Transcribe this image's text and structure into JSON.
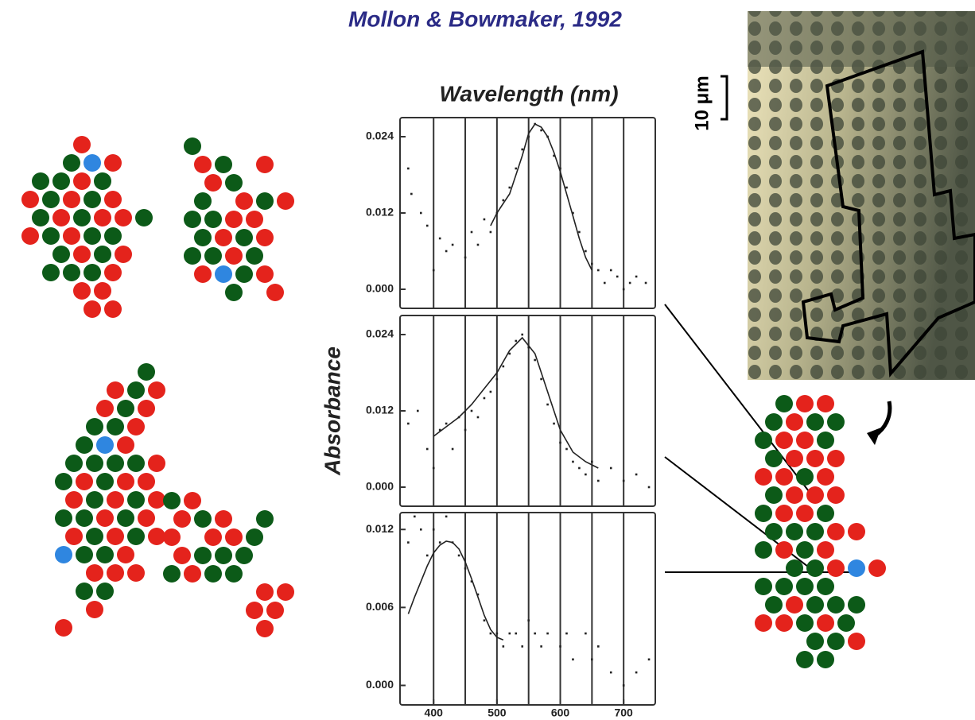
{
  "header": {
    "citation": "Mollon & Bowmaker, 1992"
  },
  "scale_bar": {
    "label": "10 μm"
  },
  "chart_data": [
    {
      "type": "scatter",
      "xlabel": "Wavelength (nm)",
      "xlim": [
        347,
        750
      ],
      "ylim": [
        -0.003,
        0.027
      ],
      "yticks": [
        {
          "value": 0,
          "label": "0.000"
        },
        0.012,
        0.024
      ],
      "xgrid": [
        400,
        450,
        500,
        550,
        600,
        650,
        700
      ],
      "color": "#222222",
      "points": {
        "x": [
          360,
          365,
          380,
          390,
          400,
          410,
          420,
          430,
          450,
          460,
          470,
          480,
          490,
          500,
          510,
          520,
          530,
          540,
          550,
          560,
          570,
          580,
          590,
          600,
          610,
          620,
          630,
          640,
          650,
          660,
          670,
          680,
          690,
          700,
          710,
          720,
          735
        ],
        "values": [
          0.019,
          0.015,
          0.012,
          0.01,
          0.003,
          0.008,
          0.006,
          0.007,
          0.005,
          0.009,
          0.007,
          0.011,
          0.009,
          0.012,
          0.014,
          0.016,
          0.019,
          0.022,
          0.024,
          0.026,
          0.025,
          0.024,
          0.021,
          0.019,
          0.016,
          0.012,
          0.009,
          0.006,
          0.004,
          0.003,
          0.001,
          0.003,
          0.002,
          0.0,
          0.001,
          0.002,
          0.001
        ]
      },
      "fit": {
        "x": [
          490,
          500,
          510,
          520,
          530,
          540,
          550,
          560,
          570,
          580,
          590,
          600,
          610,
          620,
          630,
          640,
          650
        ],
        "values": [
          0.01,
          0.012,
          0.0135,
          0.015,
          0.018,
          0.021,
          0.0245,
          0.026,
          0.0255,
          0.024,
          0.0215,
          0.0185,
          0.015,
          0.0115,
          0.008,
          0.005,
          0.003
        ]
      }
    },
    {
      "type": "scatter",
      "ylabel": "Absorbance",
      "xlim": [
        347,
        750
      ],
      "ylim": [
        -0.003,
        0.027
      ],
      "yticks": [
        {
          "value": 0,
          "label": "0.000"
        },
        0.012,
        0.024
      ],
      "xgrid": [
        400,
        450,
        500,
        550,
        600,
        650,
        700
      ],
      "color": "#222222",
      "points": {
        "x": [
          360,
          375,
          390,
          400,
          410,
          420,
          430,
          440,
          450,
          460,
          470,
          480,
          490,
          500,
          510,
          520,
          530,
          540,
          550,
          560,
          570,
          580,
          590,
          600,
          610,
          620,
          630,
          640,
          650,
          660,
          680,
          700,
          720,
          740
        ],
        "values": [
          0.01,
          0.012,
          0.006,
          0.003,
          0.009,
          0.01,
          0.006,
          0.011,
          0.009,
          0.012,
          0.011,
          0.014,
          0.015,
          0.017,
          0.019,
          0.021,
          0.023,
          0.024,
          0.022,
          0.02,
          0.017,
          0.013,
          0.01,
          0.007,
          0.006,
          0.004,
          0.003,
          0.002,
          0.004,
          0.001,
          0.003,
          0.001,
          0.002,
          0.0
        ]
      },
      "fit": {
        "x": [
          400,
          420,
          440,
          460,
          480,
          500,
          520,
          540,
          560,
          580,
          600,
          620,
          640,
          660
        ],
        "values": [
          0.008,
          0.0095,
          0.011,
          0.013,
          0.0155,
          0.018,
          0.0215,
          0.0235,
          0.021,
          0.015,
          0.009,
          0.0055,
          0.004,
          0.003
        ]
      }
    },
    {
      "type": "scatter",
      "xlim": [
        347,
        750
      ],
      "ylim": [
        -0.0015,
        0.0133
      ],
      "yticks": [
        {
          "value": 0,
          "label": "0.000"
        },
        0.006,
        0.012
      ],
      "xticks": [
        400,
        500,
        600,
        700
      ],
      "xgrid": [
        400,
        450,
        500,
        550,
        600,
        650,
        700
      ],
      "color": "#222222",
      "points": {
        "x": [
          360,
          370,
          380,
          390,
          400,
          410,
          420,
          430,
          440,
          450,
          460,
          470,
          480,
          490,
          500,
          510,
          520,
          530,
          540,
          550,
          560,
          570,
          580,
          600,
          610,
          620,
          640,
          650,
          660,
          680,
          700,
          720,
          740
        ],
        "values": [
          0.011,
          0.013,
          0.012,
          0.01,
          0.012,
          0.011,
          0.013,
          0.011,
          0.01,
          0.009,
          0.008,
          0.007,
          0.005,
          0.004,
          0.004,
          0.003,
          0.004,
          0.004,
          0.003,
          0.005,
          0.004,
          0.003,
          0.004,
          0.003,
          0.004,
          0.002,
          0.004,
          0.002,
          0.003,
          0.001,
          0.0,
          0.001,
          0.002
        ]
      },
      "fit": {
        "x": [
          360,
          370,
          380,
          390,
          400,
          410,
          420,
          430,
          440,
          450,
          460,
          470,
          480,
          490,
          500,
          510
        ],
        "values": [
          0.0055,
          0.0068,
          0.008,
          0.0092,
          0.0102,
          0.0108,
          0.0111,
          0.011,
          0.0105,
          0.0095,
          0.0082,
          0.0068,
          0.0054,
          0.0043,
          0.0037,
          0.0035
        ]
      }
    }
  ]
}
